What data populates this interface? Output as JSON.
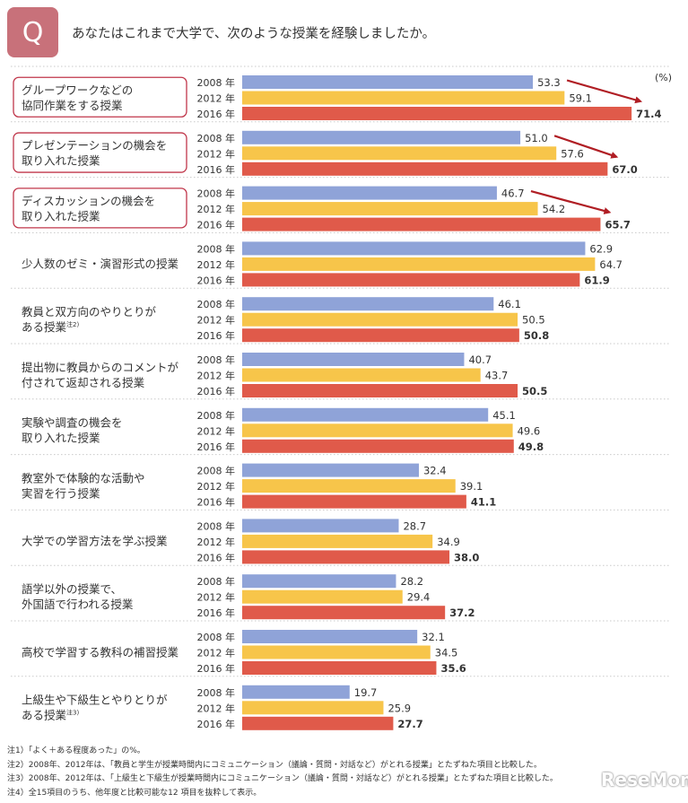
{
  "badge": "Q",
  "question": "あなたはこれまで大学で、次のような授業を経験しましたか。",
  "unit_label": "(%)",
  "notes": [
    "注1）「よく＋ある程度あった」の%。",
    "注2）2008年、2012年は、「教員と学生が授業時間内にコミュニケーション（議論・質問・対話など）がとれる授業」とたずねた項目と比較した。",
    "注3）2008年、2012年は、「上級生と下級生が授業時間内にコミュニケーション（議論・質問・対話など）がとれる授業」とたずねた項目と比較した。",
    "注4）全15項目のうち、他年度と比較可能な12 項目を抜粋して表示。"
  ],
  "watermark": "ReseMom",
  "colors": {
    "y2008": "#8fa3d8",
    "y2012": "#f7c54a",
    "y2016": "#e05a4a",
    "highlight_border": "#c0364a",
    "arrow": "#b01e24"
  },
  "chart_data": {
    "type": "bar",
    "orientation": "horizontal",
    "year_labels": [
      "2008 年",
      "2012 年",
      "2016 年"
    ],
    "xlim": [
      0,
      75
    ],
    "categories": [
      {
        "lines": [
          "グループワークなどの",
          "協同作業をする授業"
        ],
        "note": "",
        "highlight": true,
        "arrow": true,
        "values": [
          53.3,
          59.1,
          71.4
        ]
      },
      {
        "lines": [
          "プレゼンテーションの機会を",
          "取り入れた授業"
        ],
        "note": "",
        "highlight": true,
        "arrow": true,
        "values": [
          51.0,
          57.6,
          67.0
        ]
      },
      {
        "lines": [
          "ディスカッションの機会を",
          "取り入れた授業"
        ],
        "note": "",
        "highlight": true,
        "arrow": true,
        "values": [
          46.7,
          54.2,
          65.7
        ]
      },
      {
        "lines": [
          "少人数のゼミ・演習形式の授業"
        ],
        "note": "",
        "highlight": false,
        "arrow": false,
        "values": [
          62.9,
          64.7,
          61.9
        ]
      },
      {
        "lines": [
          "教員と双方向のやりとりが",
          "ある授業"
        ],
        "note": "注2)",
        "highlight": false,
        "arrow": false,
        "values": [
          46.1,
          50.5,
          50.8
        ]
      },
      {
        "lines": [
          "提出物に教員からのコメントが",
          "付されて返却される授業"
        ],
        "note": "",
        "highlight": false,
        "arrow": false,
        "values": [
          40.7,
          43.7,
          50.5
        ]
      },
      {
        "lines": [
          "実験や調査の機会を",
          "取り入れた授業"
        ],
        "note": "",
        "highlight": false,
        "arrow": false,
        "values": [
          45.1,
          49.6,
          49.8
        ]
      },
      {
        "lines": [
          "教室外で体験的な活動や",
          "実習を行う授業"
        ],
        "note": "",
        "highlight": false,
        "arrow": false,
        "values": [
          32.4,
          39.1,
          41.1
        ]
      },
      {
        "lines": [
          "大学での学習方法を学ぶ授業"
        ],
        "note": "",
        "highlight": false,
        "arrow": false,
        "values": [
          28.7,
          34.9,
          38.0
        ]
      },
      {
        "lines": [
          "語学以外の授業で、",
          "外国語で行われる授業"
        ],
        "note": "",
        "highlight": false,
        "arrow": false,
        "values": [
          28.2,
          29.4,
          37.2
        ]
      },
      {
        "lines": [
          "高校で学習する教科の補習授業"
        ],
        "note": "",
        "highlight": false,
        "arrow": false,
        "values": [
          32.1,
          34.5,
          35.6
        ]
      },
      {
        "lines": [
          "上級生や下級生とやりとりが",
          "ある授業"
        ],
        "note": "注3)",
        "highlight": false,
        "arrow": false,
        "values": [
          19.7,
          25.9,
          27.7
        ]
      }
    ]
  }
}
